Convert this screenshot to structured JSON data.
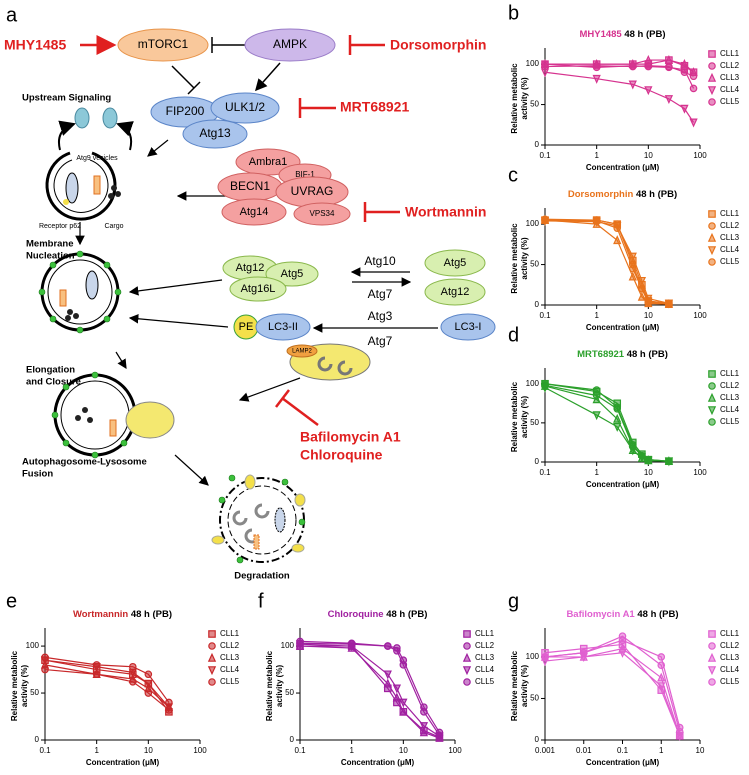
{
  "diagram": {
    "panel": "a",
    "drugs": [
      "MHY1485",
      "Dorsomorphin",
      "MRT68921",
      "Wortmannin",
      "Bafilomycin A1",
      "Chloroquine"
    ],
    "complexes": [
      "mTORC1",
      "AMPK",
      "FIP200",
      "ULK1/2",
      "Atg13",
      "Ambra1",
      "BIF-1",
      "BECN1",
      "UVRAG",
      "Atg14",
      "VPS34",
      "Atg12",
      "Atg5",
      "Atg16L",
      "Atg5",
      "Atg12",
      "PE",
      "LC3-II",
      "LC3-I",
      "LAMP2"
    ],
    "enzymes": [
      "Atg10",
      "Atg7",
      "Atg3",
      "Atg7"
    ],
    "stages": [
      [
        "Upstream Signaling"
      ],
      [
        "Membrane",
        "Nucleation"
      ],
      [
        "Elongation",
        "and Closure"
      ],
      [
        "Autophagosome-Lysosome",
        "Fusion"
      ],
      [
        "Degradation"
      ]
    ],
    "annotations": [
      "Atg9 vesicles",
      "Receptor p62",
      "Cargo"
    ]
  },
  "chart_data": [
    {
      "type": "line",
      "panel": "b",
      "title": "MHY1485",
      "subtitle": "48 h (PB)",
      "color": "#d6338f",
      "xlabel": "Concentration (μM)",
      "ylabel": [
        "Relative metabolic",
        "activity (%)"
      ],
      "xscale": "log",
      "xlim": [
        0.1,
        100
      ],
      "xticks": [
        0.1,
        1,
        10,
        100
      ],
      "ylim": [
        0,
        115
      ],
      "yticks": [
        0,
        50,
        100
      ],
      "x": [
        0.1,
        1,
        5,
        10,
        25,
        50,
        75
      ],
      "series": [
        {
          "name": "CLL1",
          "marker": "square",
          "values": [
            100,
            100,
            100,
            100,
            105,
            98,
            90
          ]
        },
        {
          "name": "CLL2",
          "marker": "circle",
          "values": [
            97,
            98,
            97,
            98,
            97,
            90,
            85
          ]
        },
        {
          "name": "CLL3",
          "marker": "triangle",
          "values": [
            100,
            100,
            100,
            105,
            105,
            100,
            90
          ]
        },
        {
          "name": "CLL4",
          "marker": "triangle-down",
          "values": [
            90,
            82,
            75,
            68,
            57,
            45,
            28
          ]
        },
        {
          "name": "CLL5",
          "marker": "circle",
          "values": [
            100,
            96,
            98,
            97,
            96,
            93,
            70
          ]
        }
      ]
    },
    {
      "type": "line",
      "panel": "c",
      "title": "Dorsomorphin",
      "subtitle": "48 h (PB)",
      "color": "#e8731c",
      "xlabel": "Concentration (μM)",
      "ylabel": [
        "Relative metabolic",
        "activity (%)"
      ],
      "xscale": "log",
      "xlim": [
        0.1,
        100
      ],
      "xticks": [
        0.1,
        1,
        10,
        100
      ],
      "ylim": [
        0,
        115
      ],
      "yticks": [
        0,
        50,
        100
      ],
      "x": [
        0.1,
        1,
        2.5,
        5,
        7.5,
        10,
        25
      ],
      "series": [
        {
          "name": "CLL1",
          "marker": "square",
          "values": [
            105,
            105,
            100,
            55,
            25,
            5,
            2
          ]
        },
        {
          "name": "CLL2",
          "marker": "circle",
          "values": [
            105,
            104,
            95,
            45,
            20,
            3,
            1
          ]
        },
        {
          "name": "CLL3",
          "marker": "triangle",
          "values": [
            105,
            100,
            80,
            35,
            10,
            2,
            1
          ]
        },
        {
          "name": "CLL4",
          "marker": "triangle-down",
          "values": [
            104,
            103,
            98,
            60,
            30,
            8,
            2
          ]
        },
        {
          "name": "CLL5",
          "marker": "circle",
          "values": [
            106,
            105,
            100,
            50,
            20,
            4,
            1
          ]
        }
      ]
    },
    {
      "type": "line",
      "panel": "d",
      "title": "MRT68921",
      "subtitle": "48 h (PB)",
      "color": "#2ca02c",
      "xlabel": "Concentration (μM)",
      "ylabel": [
        "Relative metabolic",
        "activity (%)"
      ],
      "xscale": "log",
      "xlim": [
        0.1,
        100
      ],
      "xticks": [
        0.1,
        1,
        10,
        100
      ],
      "ylim": [
        0,
        115
      ],
      "yticks": [
        0,
        50,
        100
      ],
      "x": [
        0.1,
        1,
        2.5,
        5,
        7.5,
        10,
        25
      ],
      "series": [
        {
          "name": "CLL1",
          "marker": "square",
          "values": [
            100,
            90,
            75,
            25,
            10,
            3,
            1
          ]
        },
        {
          "name": "CLL2",
          "marker": "circle",
          "values": [
            98,
            85,
            68,
            20,
            8,
            2,
            1
          ]
        },
        {
          "name": "CLL3",
          "marker": "triangle",
          "values": [
            97,
            80,
            55,
            15,
            5,
            2,
            1
          ]
        },
        {
          "name": "CLL4",
          "marker": "triangle-down",
          "values": [
            95,
            60,
            45,
            15,
            6,
            2,
            1
          ]
        },
        {
          "name": "CLL5",
          "marker": "circle",
          "values": [
            100,
            92,
            70,
            22,
            8,
            3,
            1
          ]
        }
      ]
    },
    {
      "type": "line",
      "panel": "e",
      "title": "Wortmannin",
      "subtitle": "48 h (PB)",
      "color": "#c8282a",
      "xlabel": "Concentration (μM)",
      "ylabel": [
        "Relative metabolic",
        "activity (%)"
      ],
      "xscale": "log",
      "xlim": [
        0.1,
        100
      ],
      "xticks": [
        0.1,
        1,
        10,
        100
      ],
      "ylim": [
        0,
        115
      ],
      "yticks": [
        0,
        50,
        100
      ],
      "x": [
        0.1,
        1,
        5,
        10,
        25
      ],
      "series": [
        {
          "name": "CLL1",
          "marker": "square",
          "values": [
            85,
            75,
            70,
            60,
            30
          ]
        },
        {
          "name": "CLL2",
          "marker": "circle",
          "values": [
            88,
            80,
            78,
            70,
            40
          ]
        },
        {
          "name": "CLL3",
          "marker": "triangle",
          "values": [
            80,
            70,
            65,
            55,
            35
          ]
        },
        {
          "name": "CLL4",
          "marker": "triangle-down",
          "values": [
            85,
            78,
            72,
            60,
            35
          ]
        },
        {
          "name": "CLL5",
          "marker": "circle",
          "values": [
            75,
            70,
            62,
            50,
            32
          ]
        }
      ]
    },
    {
      "type": "line",
      "panel": "f",
      "title": "Chloroquine",
      "subtitle": "48 h (PB)",
      "color": "#a020a0",
      "xlabel": "Concentration (μM)",
      "ylabel": [
        "Relative metabolic",
        "activity (%)"
      ],
      "xscale": "log",
      "xlim": [
        0.1,
        100
      ],
      "xticks": [
        0.1,
        1,
        10,
        100
      ],
      "ylim": [
        0,
        115
      ],
      "yticks": [
        0,
        50,
        100
      ],
      "x": [
        0.1,
        1,
        5,
        7.5,
        10,
        25,
        50
      ],
      "series": [
        {
          "name": "CLL1",
          "marker": "square",
          "values": [
            100,
            100,
            55,
            40,
            30,
            10,
            3
          ]
        },
        {
          "name": "CLL2",
          "marker": "circle",
          "values": [
            105,
            103,
            100,
            95,
            80,
            30,
            5
          ]
        },
        {
          "name": "CLL3",
          "marker": "triangle",
          "values": [
            100,
            98,
            60,
            45,
            30,
            8,
            2
          ]
        },
        {
          "name": "CLL4",
          "marker": "triangle-down",
          "values": [
            102,
            100,
            70,
            55,
            40,
            15,
            4
          ]
        },
        {
          "name": "CLL5",
          "marker": "circle",
          "values": [
            103,
            102,
            100,
            98,
            85,
            35,
            8
          ]
        }
      ]
    },
    {
      "type": "line",
      "panel": "g",
      "title": "Bafilomycin A1",
      "subtitle": "48 h (PB)",
      "color": "#e060d0",
      "xlabel": "Concentration (μM)",
      "ylabel": [
        "Relative metabolic",
        "activity (%)"
      ],
      "xscale": "log",
      "xlim": [
        0.001,
        10
      ],
      "xticks": [
        0.001,
        0.01,
        0.1,
        1,
        10
      ],
      "ylim": [
        0,
        130
      ],
      "yticks": [
        0,
        50,
        100
      ],
      "x": [
        0.001,
        0.01,
        0.1,
        1,
        3
      ],
      "series": [
        {
          "name": "CLL1",
          "marker": "square",
          "values": [
            105,
            110,
            115,
            60,
            5
          ]
        },
        {
          "name": "CLL2",
          "marker": "circle",
          "values": [
            100,
            105,
            125,
            90,
            10
          ]
        },
        {
          "name": "CLL3",
          "marker": "triangle",
          "values": [
            100,
            100,
            110,
            75,
            5
          ]
        },
        {
          "name": "CLL4",
          "marker": "triangle-down",
          "values": [
            95,
            100,
            105,
            65,
            5
          ]
        },
        {
          "name": "CLL5",
          "marker": "circle",
          "values": [
            100,
            105,
            120,
            100,
            15
          ]
        }
      ]
    }
  ]
}
